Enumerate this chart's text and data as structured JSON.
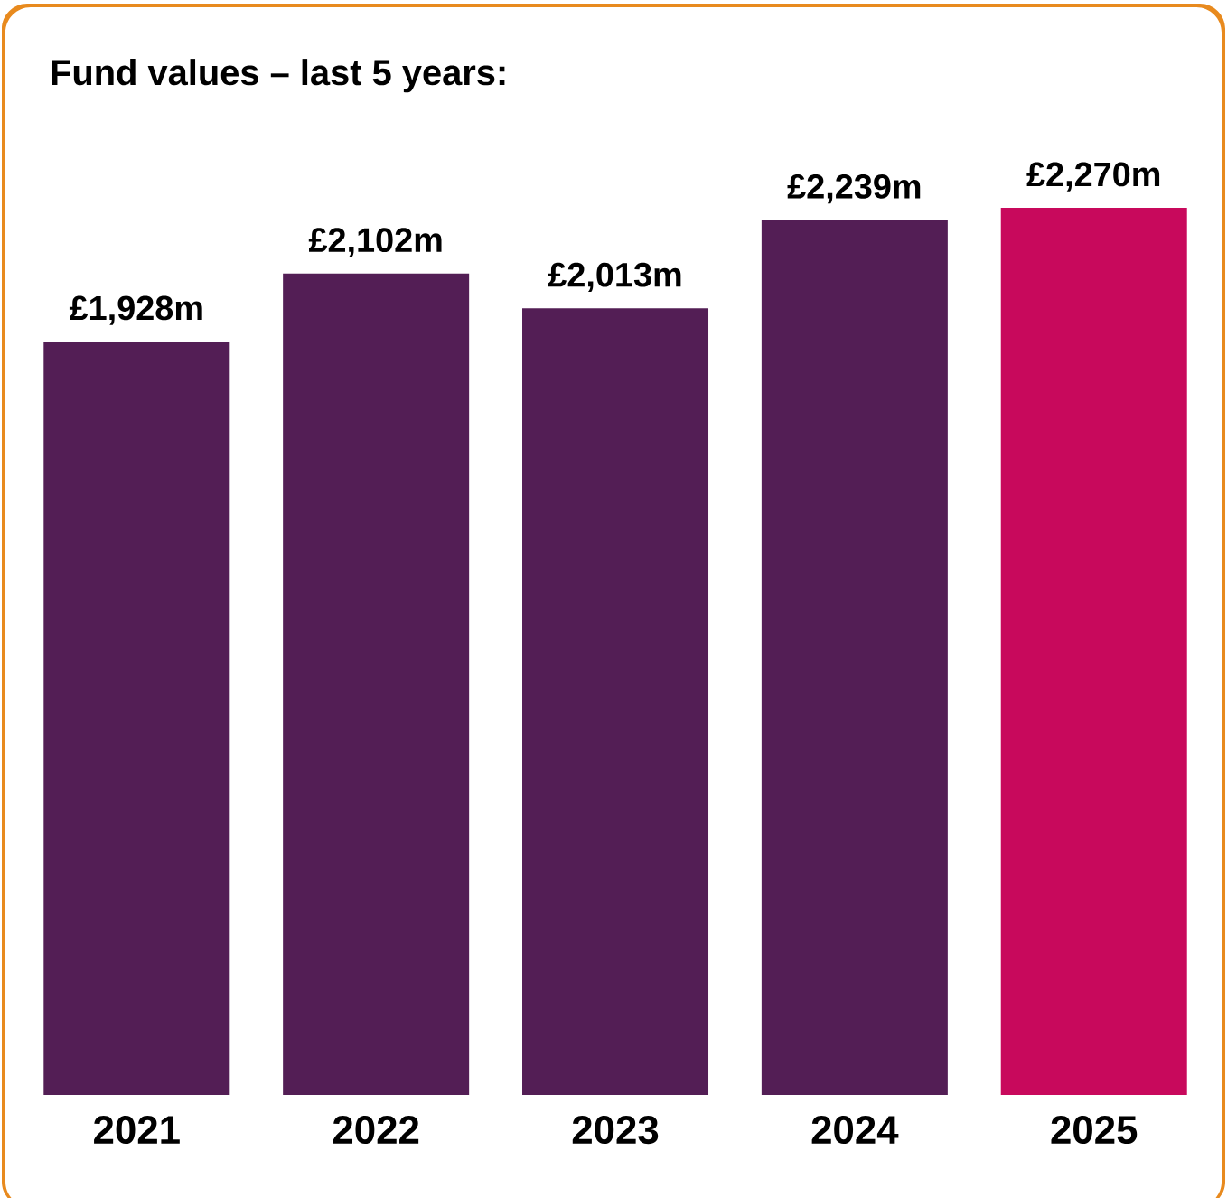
{
  "chart_data": {
    "type": "bar",
    "title": "Fund values – last 5 years:",
    "categories": [
      "2021",
      "2022",
      "2023",
      "2024",
      "2025"
    ],
    "values": [
      1928,
      2102,
      2013,
      2239,
      2270
    ],
    "colors": [
      "#531e55",
      "#531e55",
      "#531e55",
      "#531e55",
      "#c8095c"
    ],
    "value_labels": [
      "£1,928m",
      "£2,102m",
      "£2,013m",
      "£2,239m",
      "£2,270m"
    ]
  }
}
